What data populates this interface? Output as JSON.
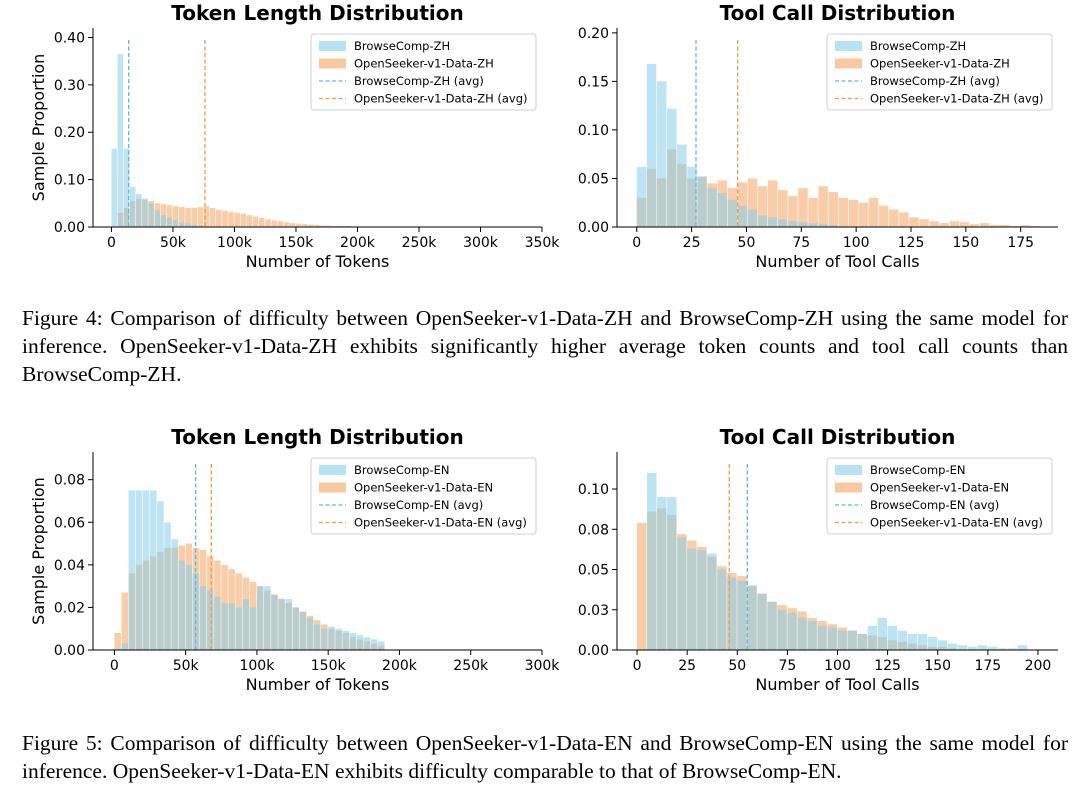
{
  "colors": {
    "series_a": "#87ceeb",
    "series_b": "#f4a460",
    "avg_a": "#5bb7e5",
    "avg_b": "#f39a4a"
  },
  "figure4": {
    "caption": "Figure 4: Comparison of difficulty between OpenSeeker-v1-Data-ZH and BrowseComp-ZH using the same model for inference. OpenSeeker-v1-Data-ZH exhibits significantly higher average token counts and tool call counts than BrowseComp-ZH."
  },
  "figure5": {
    "caption": "Figure 5: Comparison of difficulty between OpenSeeker-v1-Data-EN and BrowseComp-EN using the same model for inference. OpenSeeker-v1-Data-EN exhibits difficulty comparable to that of BrowseComp-EN."
  },
  "chart_data": [
    {
      "id": "zh_tokens",
      "type": "histogram",
      "title": "Token Length Distribution",
      "xlabel": "Number of Tokens",
      "ylabel": "Sample Proportion",
      "xlim": [
        -15000,
        350000
      ],
      "ylim": [
        0,
        0.42
      ],
      "xticks": [
        0,
        50000,
        100000,
        150000,
        200000,
        250000,
        300000,
        350000
      ],
      "xtick_labels": [
        "0",
        "50k",
        "100k",
        "150k",
        "200k",
        "250k",
        "300k",
        "350k"
      ],
      "yticks": [
        0,
        0.1,
        0.2,
        0.3,
        0.4
      ],
      "ytick_labels": [
        "0.00",
        "0.10",
        "0.20",
        "0.30",
        "0.40"
      ],
      "bin_start": 0,
      "bin_width": 5000,
      "legend": [
        "BrowseComp-ZH",
        "OpenSeeker-v1-Data-ZH",
        "BrowseComp-ZH (avg)",
        "OpenSeeker-v1-Data-ZH (avg)"
      ],
      "series": [
        {
          "name": "BrowseComp-ZH",
          "avg": 14000,
          "values": [
            0.165,
            0.365,
            0.165,
            0.085,
            0.07,
            0.06,
            0.05,
            0.035,
            0.025,
            0.02,
            0.015,
            0.01,
            0.007,
            0.005,
            0.003
          ]
        },
        {
          "name": "OpenSeeker-v1-Data-ZH",
          "avg": 76000,
          "values": [
            0,
            0.03,
            0.04,
            0.055,
            0.06,
            0.058,
            0.055,
            0.05,
            0.048,
            0.046,
            0.044,
            0.042,
            0.04,
            0.04,
            0.042,
            0.044,
            0.04,
            0.036,
            0.034,
            0.032,
            0.03,
            0.028,
            0.025,
            0.022,
            0.019,
            0.016,
            0.014,
            0.012,
            0.01,
            0.008,
            0.007,
            0.006,
            0.005,
            0.004,
            0.003,
            0.003,
            0.002,
            0.002,
            0.002,
            0.001,
            0.001,
            0.001,
            0.001
          ]
        }
      ]
    },
    {
      "id": "zh_tools",
      "type": "histogram",
      "title": "Tool Call Distribution",
      "xlabel": "Number of Tool Calls",
      "ylabel": "",
      "xlim": [
        -9,
        192
      ],
      "ylim": [
        0,
        0.205
      ],
      "xticks": [
        0,
        25,
        50,
        75,
        100,
        125,
        150,
        175
      ],
      "xtick_labels": [
        "0",
        "25",
        "50",
        "75",
        "100",
        "125",
        "150",
        "175"
      ],
      "yticks": [
        0,
        0.05,
        0.1,
        0.15,
        0.2
      ],
      "ytick_labels": [
        "0.00",
        "0.05",
        "0.10",
        "0.15",
        "0.20"
      ],
      "bin_start": 0,
      "bin_width": 4.6,
      "legend": [
        "BrowseComp-ZH",
        "OpenSeeker-v1-Data-ZH",
        "BrowseComp-ZH (avg)",
        "OpenSeeker-v1-Data-ZH (avg)"
      ],
      "series": [
        {
          "name": "BrowseComp-ZH",
          "avg": 27,
          "values": [
            0.062,
            0.168,
            0.15,
            0.122,
            0.085,
            0.062,
            0.052,
            0.04,
            0.035,
            0.028,
            0.022,
            0.018,
            0.012,
            0.01,
            0.008,
            0.006,
            0.005,
            0.004,
            0.003,
            0.002
          ]
        },
        {
          "name": "OpenSeeker-v1-Data-ZH",
          "avg": 46,
          "values": [
            0.03,
            0.06,
            0.05,
            0.08,
            0.065,
            0.05,
            0.052,
            0.045,
            0.048,
            0.04,
            0.046,
            0.05,
            0.042,
            0.048,
            0.038,
            0.032,
            0.04,
            0.03,
            0.042,
            0.036,
            0.03,
            0.028,
            0.025,
            0.03,
            0.022,
            0.018,
            0.015,
            0.01,
            0.008,
            0.006,
            0.004,
            0.006,
            0.005,
            0.003,
            0.004,
            0.002,
            0.002,
            0.001,
            0.002,
            0.001
          ]
        }
      ]
    },
    {
      "id": "en_tokens",
      "type": "histogram",
      "title": "Token Length Distribution",
      "xlabel": "Number of Tokens",
      "ylabel": "Sample Proportion",
      "xlim": [
        -15000,
        300000
      ],
      "ylim": [
        0,
        0.093
      ],
      "xticks": [
        0,
        50000,
        100000,
        150000,
        200000,
        250000,
        300000
      ],
      "xtick_labels": [
        "0",
        "50k",
        "100k",
        "150k",
        "200k",
        "250k",
        "300k"
      ],
      "yticks": [
        0,
        0.02,
        0.04,
        0.06,
        0.08
      ],
      "ytick_labels": [
        "0.00",
        "0.02",
        "0.04",
        "0.06",
        "0.08"
      ],
      "bin_start": 0,
      "bin_width": 5000,
      "legend": [
        "BrowseComp-EN",
        "OpenSeeker-v1-Data-EN",
        "BrowseComp-EN (avg)",
        "OpenSeeker-v1-Data-EN (avg)"
      ],
      "series": [
        {
          "name": "BrowseComp-EN",
          "avg": 57000,
          "values": [
            0,
            0.003,
            0.075,
            0.075,
            0.075,
            0.075,
            0.07,
            0.06,
            0.052,
            0.042,
            0.04,
            0.036,
            0.03,
            0.028,
            0.025,
            0.022,
            0.022,
            0.02,
            0.024,
            0.02,
            0.03,
            0.03,
            0.026,
            0.024,
            0.024,
            0.02,
            0.018,
            0.015,
            0.012,
            0.01,
            0.011,
            0.01,
            0.009,
            0.008,
            0.007,
            0.006,
            0.005,
            0.004
          ]
        },
        {
          "name": "OpenSeeker-v1-Data-EN",
          "avg": 68000,
          "values": [
            0.008,
            0.027,
            0.036,
            0.04,
            0.042,
            0.044,
            0.046,
            0.048,
            0.048,
            0.049,
            0.05,
            0.048,
            0.047,
            0.044,
            0.042,
            0.04,
            0.038,
            0.036,
            0.034,
            0.032,
            0.03,
            0.028,
            0.026,
            0.024,
            0.022,
            0.02,
            0.018,
            0.016,
            0.014,
            0.012,
            0.01,
            0.009,
            0.008,
            0.006,
            0.005,
            0.004,
            0.003,
            0.002
          ]
        }
      ]
    },
    {
      "id": "en_tools",
      "type": "histogram",
      "title": "Tool Call Distribution",
      "xlabel": "Number of Tool Calls",
      "ylabel": "",
      "xlim": [
        -10,
        210
      ],
      "ylim": [
        0,
        0.123
      ],
      "xticks": [
        0,
        25,
        50,
        75,
        100,
        125,
        150,
        175,
        200
      ],
      "xtick_labels": [
        "0",
        "25",
        "50",
        "75",
        "100",
        "125",
        "150",
        "175",
        "200"
      ],
      "yticks": [
        0,
        0.025,
        0.05,
        0.075,
        0.1
      ],
      "ytick_labels": [
        "0.00",
        "0.03",
        "0.05",
        "0.08",
        "0.10"
      ],
      "bin_start": 0,
      "bin_width": 5,
      "legend": [
        "BrowseComp-EN",
        "OpenSeeker-v1-Data-EN",
        "BrowseComp-EN (avg)",
        "OpenSeeker-v1-Data-EN (avg)"
      ],
      "series": [
        {
          "name": "BrowseComp-EN",
          "avg": 55,
          "values": [
            0,
            0.11,
            0.095,
            0.095,
            0.07,
            0.063,
            0.062,
            0.06,
            0.05,
            0.045,
            0.043,
            0.04,
            0.035,
            0.03,
            0.025,
            0.023,
            0.02,
            0.018,
            0.015,
            0.014,
            0.012,
            0.012,
            0.01,
            0.015,
            0.02,
            0.015,
            0.012,
            0.01,
            0.01,
            0.008,
            0.006,
            0.004,
            0.003,
            0.002,
            0.003,
            0.002,
            0.001,
            0.001,
            0.003
          ]
        },
        {
          "name": "OpenSeeker-v1-Data-EN",
          "avg": 46,
          "values": [
            0.079,
            0.086,
            0.088,
            0.084,
            0.072,
            0.068,
            0.064,
            0.058,
            0.052,
            0.048,
            0.046,
            0.04,
            0.035,
            0.03,
            0.028,
            0.026,
            0.024,
            0.02,
            0.018,
            0.016,
            0.014,
            0.012,
            0.01,
            0.009,
            0.008,
            0.006,
            0.005,
            0.004,
            0.003,
            0.002,
            0.002,
            0.001
          ]
        }
      ]
    }
  ]
}
